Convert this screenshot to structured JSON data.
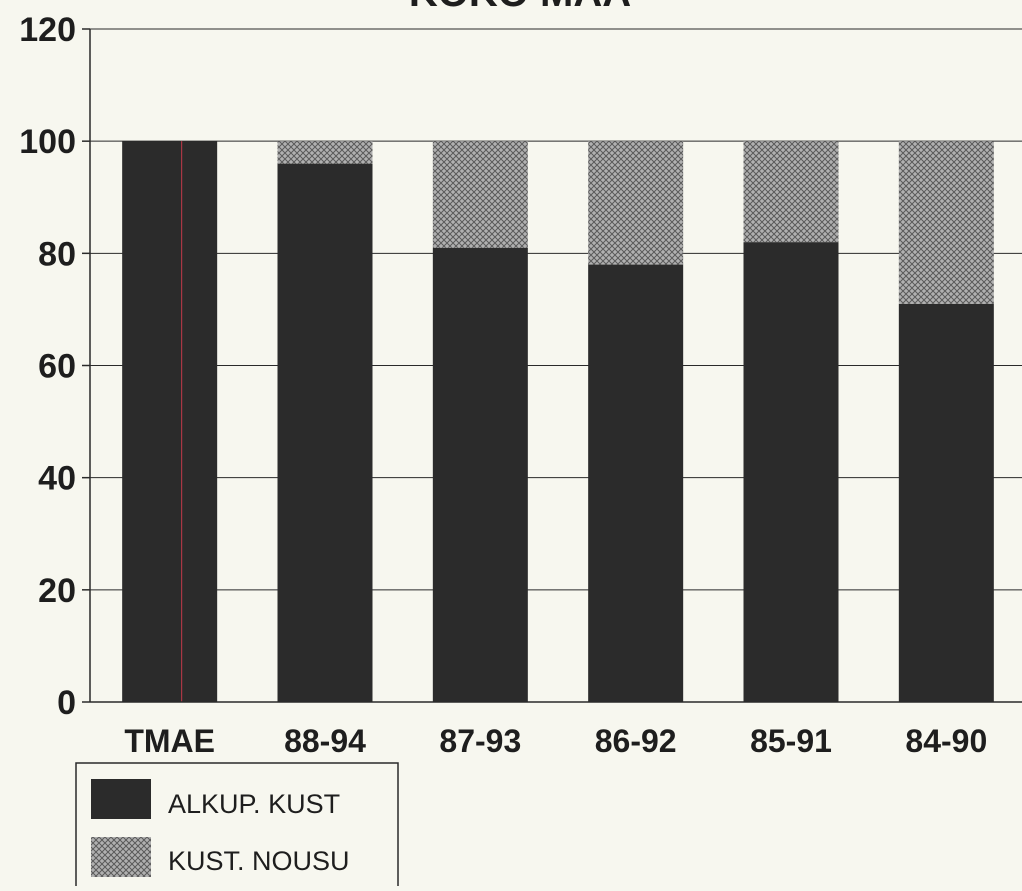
{
  "chart_data": {
    "type": "bar",
    "stacked": true,
    "title": "KOKO MAA",
    "categories": [
      "TMAE",
      "88-94",
      "87-93",
      "86-92",
      "85-91",
      "84-90"
    ],
    "series": [
      {
        "name": "ALKUP. KUST",
        "values": [
          100,
          96,
          81,
          78,
          82,
          71
        ],
        "color": "#2b2b2b",
        "pattern": "solid-dark"
      },
      {
        "name": "KUST. NOUSU",
        "values": [
          0,
          4,
          19,
          22,
          18,
          29
        ],
        "color": "#8f8f8f",
        "pattern": "crosshatch"
      }
    ],
    "ylim": [
      0,
      120
    ],
    "yticks": [
      "0",
      "20",
      "40",
      "60",
      "80",
      "100",
      "120"
    ],
    "xlabel": "",
    "ylabel": "",
    "grid": true,
    "legend_position": "bottom-left",
    "colors": {
      "background": "#f7f7ef",
      "plot_background": "#f7f7ef",
      "text": "#1e1e1e",
      "grid": "#2a2a2a",
      "accent_line": "#c23a4a"
    }
  }
}
